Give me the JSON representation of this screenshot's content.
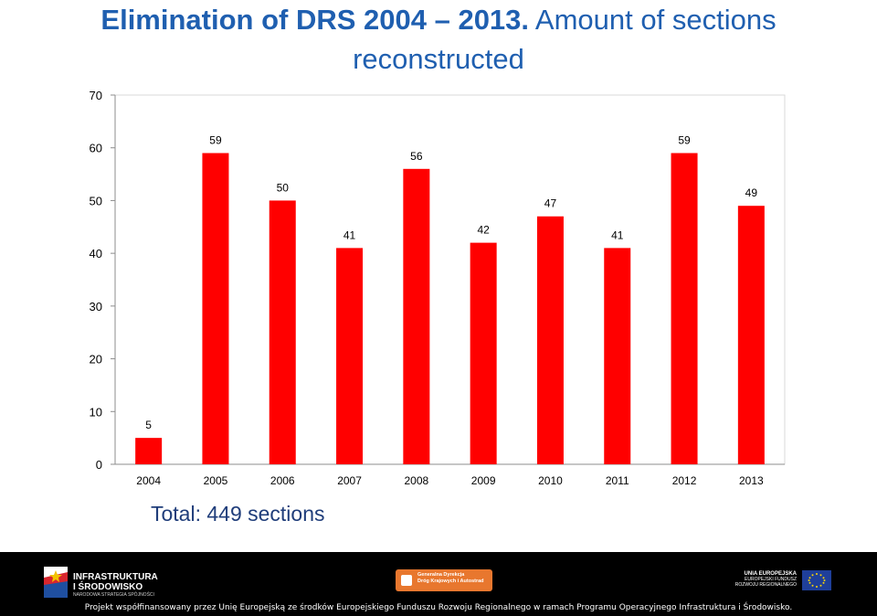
{
  "slide": {
    "title_line1_bold": "Elimination of DRS 2004 – 2013.",
    "title_line1_rest": " Amount of sections",
    "title_line2": "reconstructed",
    "total": "Total: 449 sections"
  },
  "chart_data": {
    "type": "bar",
    "title": "Elimination of DRS 2004 – 2013. Amount of sections reconstructed",
    "categories": [
      "2004",
      "2005",
      "2006",
      "2007",
      "2008",
      "2009",
      "2010",
      "2011",
      "2012",
      "2013"
    ],
    "values": [
      5,
      59,
      50,
      41,
      56,
      42,
      47,
      41,
      59,
      49
    ],
    "ylim": [
      0,
      70
    ],
    "yticks": [
      0,
      10,
      20,
      30,
      40,
      50,
      60,
      70
    ],
    "xlabel": "",
    "ylabel": "",
    "grid": false,
    "data_labels": true,
    "bar_color": "#ff0000"
  },
  "footer": {
    "left_logo_line1": "INFRASTRUKTURA",
    "left_logo_line2": "I ŚRODOWISKO",
    "left_logo_sub": "NARODOWA STRATEGIA SPÓJNOŚCI",
    "mid_logo_line1": "Generalna Dyrekcja",
    "mid_logo_line2": "Dróg Krajowych i Autostrad",
    "right_logo_line1": "UNIA EUROPEJSKA",
    "right_logo_line2": "EUROPEJSKI FUNDUSZ",
    "right_logo_line3": "ROZWOJU REGIONALNEGO",
    "note": "Projekt współfinansowany przez Unię Europejską ze środków Europejskiego Funduszu Rozwoju Regionalnego w ramach Programu Operacyjnego Infrastruktura i Środowisko."
  }
}
